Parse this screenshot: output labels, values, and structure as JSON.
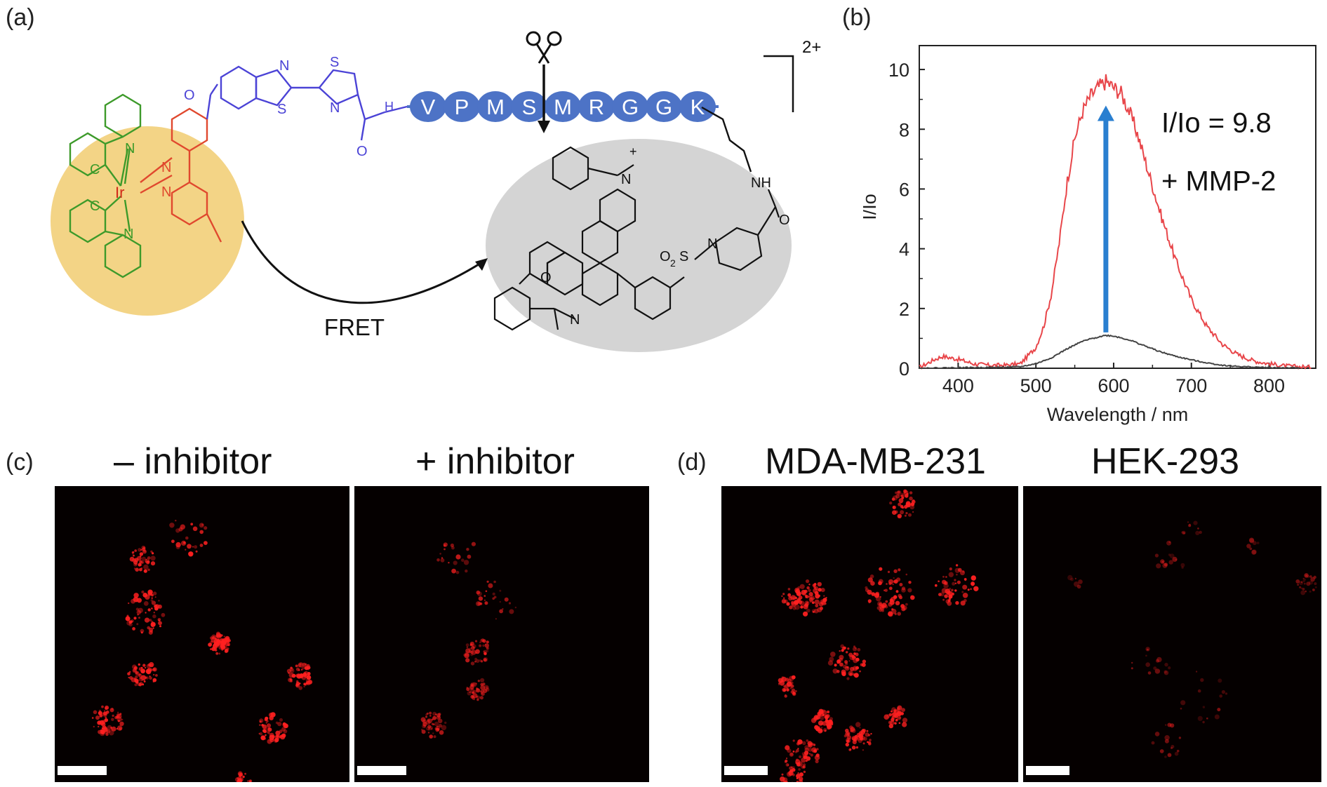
{
  "panels": {
    "a": "(a)",
    "b": "(b)",
    "c": "(c)",
    "d": "(d)"
  },
  "scheme": {
    "charge": "2+",
    "peptide": [
      "V",
      "P",
      "M",
      "S",
      "M",
      "R",
      "G",
      "G",
      "K"
    ],
    "fret_label": "FRET",
    "atoms": {
      "N": "N",
      "S": "S",
      "O": "O",
      "C": "C",
      "Ir": "Ir",
      "H": "H",
      "NH": "NH",
      "NplusPos": "+",
      "SO2": "S",
      "O2": "O",
      "O2sub": "2"
    },
    "colors": {
      "donor_bg": "#f3d486",
      "acceptor_bg": "#d4d4d4",
      "ligand_green": "#3d9a2a",
      "ligand_red": "#e0482e",
      "ir_red": "#d12a1a",
      "linker_blue": "#4b43d6",
      "peptide_fill": "#4d73c6"
    }
  },
  "chart_data": {
    "type": "line",
    "xlabel": "Wavelength / nm",
    "ylabel": "I/Io",
    "xlim": [
      350,
      860
    ],
    "ylim": [
      0,
      10.8
    ],
    "xticks": [
      400,
      500,
      600,
      700,
      800
    ],
    "yticks": [
      0,
      2,
      4,
      6,
      8,
      10
    ],
    "annotation": {
      "ratio": "I/Io = 9.8",
      "enzyme": "+ MMP-2"
    },
    "series": [
      {
        "color": "#e8464a",
        "x": [
          350,
          370,
          380,
          400,
          420,
          440,
          460,
          480,
          500,
          510,
          520,
          530,
          540,
          550,
          560,
          570,
          580,
          590,
          600,
          610,
          620,
          630,
          640,
          650,
          660,
          680,
          700,
          720,
          740,
          760,
          780,
          800,
          820,
          840,
          855
        ],
        "y": [
          0.02,
          0.3,
          0.4,
          0.3,
          0.15,
          0.1,
          0.1,
          0.15,
          0.7,
          1.4,
          2.5,
          4.2,
          6.2,
          7.7,
          8.6,
          9.1,
          9.4,
          9.6,
          9.4,
          9.2,
          8.6,
          7.9,
          7.0,
          6.1,
          5.2,
          3.6,
          2.3,
          1.4,
          0.8,
          0.45,
          0.25,
          0.15,
          0.08,
          0.05,
          0.03
        ]
      },
      {
        "color": "#444444",
        "x": [
          350,
          400,
          450,
          480,
          500,
          520,
          540,
          560,
          580,
          590,
          600,
          620,
          640,
          660,
          680,
          700,
          720,
          740,
          760,
          780,
          800,
          840
        ],
        "y": [
          0.0,
          0.02,
          0.03,
          0.05,
          0.15,
          0.35,
          0.65,
          0.9,
          1.05,
          1.1,
          1.08,
          0.95,
          0.75,
          0.55,
          0.4,
          0.28,
          0.18,
          0.1,
          0.06,
          0.04,
          0.02,
          0.01
        ]
      }
    ],
    "arrow": {
      "x": 590,
      "y_from": 1.2,
      "y_to": 8.7,
      "color": "#2a7fd0"
    }
  },
  "microscopy": {
    "c_minus_title": "– inhibitor",
    "c_plus_title": "+ inhibitor",
    "d_left_title": "MDA-MB-231",
    "d_right_title": "HEK-293",
    "signal_color": "#ff2020"
  }
}
